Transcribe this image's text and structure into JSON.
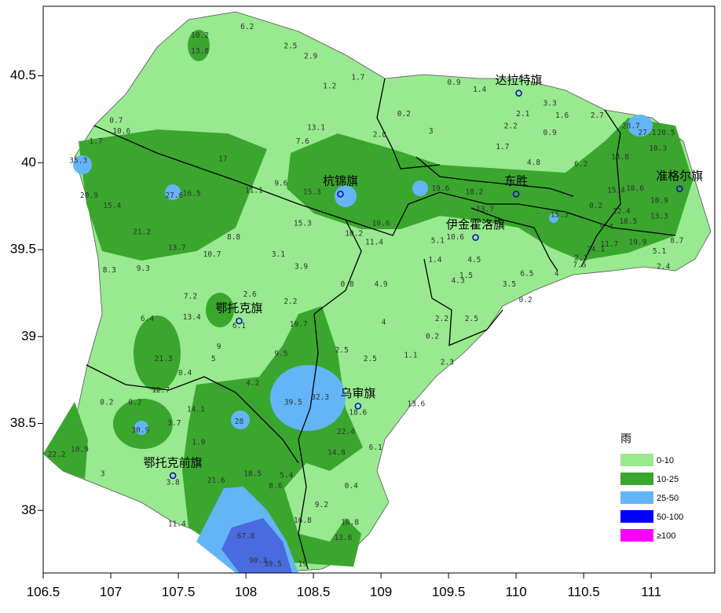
{
  "map": {
    "xlim": [
      106.5,
      111.47
    ],
    "ylim": [
      37.64,
      40.9
    ],
    "xticks": [
      106.5,
      107,
      107.5,
      108,
      108.5,
      109,
      109.5,
      110,
      110.5,
      111
    ],
    "yticks": [
      38,
      38.5,
      39,
      39.5,
      40,
      40.5
    ],
    "cities": [
      {
        "name": "达拉特旗",
        "lon": 110.02,
        "lat": 40.4
      },
      {
        "name": "东胜",
        "lon": 110.0,
        "lat": 39.82
      },
      {
        "name": "准格尔旗",
        "lon": 111.21,
        "lat": 39.85
      },
      {
        "name": "杭锦旗",
        "lon": 108.7,
        "lat": 39.82
      },
      {
        "name": "伊金霍洛旗",
        "lon": 109.7,
        "lat": 39.57
      },
      {
        "name": "鄂托克旗",
        "lon": 107.95,
        "lat": 39.09
      },
      {
        "name": "乌审旗",
        "lon": 108.83,
        "lat": 38.6
      },
      {
        "name": "鄂托克前旗",
        "lon": 107.46,
        "lat": 38.2
      }
    ],
    "legend": {
      "title": "雨",
      "entries": [
        {
          "label": "0-10",
          "color": "#98e98f"
        },
        {
          "label": "10-25",
          "color": "#3aa62e"
        },
        {
          "label": "25-50",
          "color": "#63b5f8"
        },
        {
          "label": "50-100",
          "color": "#0000ff"
        },
        {
          "label": "≥100",
          "color": "#ff00ff"
        }
      ]
    },
    "stations": [
      {
        "value": "6.2",
        "lon": 108.01,
        "lat": 40.78
      },
      {
        "value": "10.2",
        "lon": 107.66,
        "lat": 40.73
      },
      {
        "value": "13.8",
        "lon": 107.66,
        "lat": 40.64
      },
      {
        "value": "2.5",
        "lon": 108.33,
        "lat": 40.67
      },
      {
        "value": "2.9",
        "lon": 108.48,
        "lat": 40.61
      },
      {
        "value": "1.7",
        "lon": 108.83,
        "lat": 40.49
      },
      {
        "value": "1.2",
        "lon": 108.62,
        "lat": 40.44
      },
      {
        "value": "0.9",
        "lon": 109.54,
        "lat": 40.46
      },
      {
        "value": "1.4",
        "lon": 109.73,
        "lat": 40.42
      },
      {
        "value": "2.2",
        "lon": 109.96,
        "lat": 40.21
      },
      {
        "value": "3.3",
        "lon": 110.25,
        "lat": 40.34
      },
      {
        "value": "1.6",
        "lon": 110.34,
        "lat": 40.27
      },
      {
        "value": "2.7",
        "lon": 110.6,
        "lat": 40.27
      },
      {
        "value": "0.2",
        "lon": 109.17,
        "lat": 40.28
      },
      {
        "value": "3",
        "lon": 109.37,
        "lat": 40.18
      },
      {
        "value": "2.8",
        "lon": 108.99,
        "lat": 40.16
      },
      {
        "value": "7.6",
        "lon": 108.42,
        "lat": 40.12
      },
      {
        "value": "13.1",
        "lon": 108.52,
        "lat": 40.2
      },
      {
        "value": "17",
        "lon": 107.83,
        "lat": 40.02
      },
      {
        "value": "1.7",
        "lon": 106.89,
        "lat": 40.12
      },
      {
        "value": "0.7",
        "lon": 107.04,
        "lat": 40.24
      },
      {
        "value": "10.6",
        "lon": 107.08,
        "lat": 40.18
      },
      {
        "value": "35.3",
        "lon": 106.76,
        "lat": 40.01
      },
      {
        "value": "20.9",
        "lon": 106.84,
        "lat": 39.81
      },
      {
        "value": "27.6",
        "lon": 107.47,
        "lat": 39.81
      },
      {
        "value": "16.5",
        "lon": 107.6,
        "lat": 39.82
      },
      {
        "value": "15.4",
        "lon": 107.01,
        "lat": 39.75
      },
      {
        "value": "11.1",
        "lon": 108.06,
        "lat": 39.84
      },
      {
        "value": "9.6",
        "lon": 108.26,
        "lat": 39.88
      },
      {
        "value": "15.3",
        "lon": 108.49,
        "lat": 39.83
      },
      {
        "value": "21.2",
        "lon": 107.23,
        "lat": 39.6
      },
      {
        "value": "13.7",
        "lon": 107.49,
        "lat": 39.51
      },
      {
        "value": "10.7",
        "lon": 107.75,
        "lat": 39.47
      },
      {
        "value": "8.8",
        "lon": 107.91,
        "lat": 39.57
      },
      {
        "value": "9.3",
        "lon": 107.24,
        "lat": 39.39
      },
      {
        "value": "8.3",
        "lon": 106.99,
        "lat": 39.38
      },
      {
        "value": "3.1",
        "lon": 108.24,
        "lat": 39.47
      },
      {
        "value": "3.9",
        "lon": 108.41,
        "lat": 39.4
      },
      {
        "value": "15.3",
        "lon": 108.42,
        "lat": 39.65
      },
      {
        "value": "10.2",
        "lon": 108.8,
        "lat": 39.59
      },
      {
        "value": "11.4",
        "lon": 108.95,
        "lat": 39.54
      },
      {
        "value": "10.6",
        "lon": 109.0,
        "lat": 39.65
      },
      {
        "value": "0.8",
        "lon": 108.75,
        "lat": 39.3
      },
      {
        "value": "4.9",
        "lon": 109.0,
        "lat": 39.3
      },
      {
        "value": "7.2",
        "lon": 107.59,
        "lat": 39.23
      },
      {
        "value": "2.6",
        "lon": 108.03,
        "lat": 39.24
      },
      {
        "value": "2.2",
        "lon": 108.33,
        "lat": 39.2
      },
      {
        "value": "13.4",
        "lon": 107.6,
        "lat": 39.11
      },
      {
        "value": "6.1",
        "lon": 107.95,
        "lat": 39.06
      },
      {
        "value": "19.7",
        "lon": 108.39,
        "lat": 39.07
      },
      {
        "value": "6.4",
        "lon": 107.27,
        "lat": 39.1
      },
      {
        "value": "21.3",
        "lon": 107.39,
        "lat": 38.87
      },
      {
        "value": "9",
        "lon": 107.8,
        "lat": 38.94
      },
      {
        "value": "5",
        "lon": 107.76,
        "lat": 38.87
      },
      {
        "value": "0.4",
        "lon": 107.55,
        "lat": 38.79
      },
      {
        "value": "9.5",
        "lon": 108.26,
        "lat": 38.9
      },
      {
        "value": "4.2",
        "lon": 108.05,
        "lat": 38.73
      },
      {
        "value": "2.5",
        "lon": 108.71,
        "lat": 38.92
      },
      {
        "value": "2.5",
        "lon": 108.92,
        "lat": 38.87
      },
      {
        "value": "4",
        "lon": 109.02,
        "lat": 39.08
      },
      {
        "value": "1.1",
        "lon": 109.22,
        "lat": 38.89
      },
      {
        "value": "2.2",
        "lon": 109.45,
        "lat": 39.1
      },
      {
        "value": "0.2",
        "lon": 109.38,
        "lat": 39.0
      },
      {
        "value": "2.5",
        "lon": 109.67,
        "lat": 39.1
      },
      {
        "value": "2.3",
        "lon": 109.49,
        "lat": 38.85
      },
      {
        "value": "12.7",
        "lon": 107.37,
        "lat": 38.69
      },
      {
        "value": "0.2",
        "lon": 106.97,
        "lat": 38.62
      },
      {
        "value": "0.2",
        "lon": 107.18,
        "lat": 38.62
      },
      {
        "value": "14.1",
        "lon": 107.63,
        "lat": 38.58
      },
      {
        "value": "39.5",
        "lon": 108.35,
        "lat": 38.62
      },
      {
        "value": "32.3",
        "lon": 108.55,
        "lat": 38.65
      },
      {
        "value": "18.6",
        "lon": 108.83,
        "lat": 38.56
      },
      {
        "value": "13.6",
        "lon": 109.26,
        "lat": 38.61
      },
      {
        "value": "30.9",
        "lon": 107.22,
        "lat": 38.46
      },
      {
        "value": "3.7",
        "lon": 107.47,
        "lat": 38.5
      },
      {
        "value": "28",
        "lon": 107.95,
        "lat": 38.51
      },
      {
        "value": "1.9",
        "lon": 107.65,
        "lat": 38.39
      },
      {
        "value": "22.4",
        "lon": 108.74,
        "lat": 38.45
      },
      {
        "value": "10.9",
        "lon": 106.77,
        "lat": 38.35
      },
      {
        "value": "22.2",
        "lon": 106.6,
        "lat": 38.32
      },
      {
        "value": "6.1",
        "lon": 108.96,
        "lat": 38.36
      },
      {
        "value": "14.8",
        "lon": 108.67,
        "lat": 38.33
      },
      {
        "value": "3",
        "lon": 106.94,
        "lat": 38.21
      },
      {
        "value": "3.8",
        "lon": 107.46,
        "lat": 38.16
      },
      {
        "value": "21.6",
        "lon": 107.78,
        "lat": 38.17
      },
      {
        "value": "18.5",
        "lon": 108.05,
        "lat": 38.21
      },
      {
        "value": "5.4",
        "lon": 108.3,
        "lat": 38.2
      },
      {
        "value": "8.6",
        "lon": 108.22,
        "lat": 38.14
      },
      {
        "value": "0.4",
        "lon": 108.78,
        "lat": 38.14
      },
      {
        "value": "9.2",
        "lon": 108.56,
        "lat": 38.03
      },
      {
        "value": "16.8",
        "lon": 108.42,
        "lat": 37.94
      },
      {
        "value": "10.8",
        "lon": 108.77,
        "lat": 37.93
      },
      {
        "value": "13.6",
        "lon": 108.72,
        "lat": 37.84
      },
      {
        "value": "11.4",
        "lon": 107.49,
        "lat": 37.92
      },
      {
        "value": "67.8",
        "lon": 108.0,
        "lat": 37.85
      },
      {
        "value": "90.3",
        "lon": 108.09,
        "lat": 37.71
      },
      {
        "value": "39.5",
        "lon": 108.2,
        "lat": 37.69
      },
      {
        "value": "19",
        "lon": 108.42,
        "lat": 37.69
      },
      {
        "value": "10.3",
        "lon": 111.05,
        "lat": 40.08
      },
      {
        "value": "20.5",
        "lon": 111.11,
        "lat": 40.17
      },
      {
        "value": "28.7",
        "lon": 110.85,
        "lat": 40.21
      },
      {
        "value": "27.1",
        "lon": 110.97,
        "lat": 40.17
      },
      {
        "value": "14.8",
        "lon": 110.77,
        "lat": 40.03
      },
      {
        "value": "15.4",
        "lon": 110.74,
        "lat": 39.84
      },
      {
        "value": "0.2",
        "lon": 110.59,
        "lat": 39.75
      },
      {
        "value": "12.4",
        "lon": 110.78,
        "lat": 39.72
      },
      {
        "value": "18.5",
        "lon": 110.83,
        "lat": 39.66
      },
      {
        "value": "9.4",
        "lon": 110.67,
        "lat": 39.63
      },
      {
        "value": "11.7",
        "lon": 110.69,
        "lat": 39.53
      },
      {
        "value": "24.1",
        "lon": 110.59,
        "lat": 39.5
      },
      {
        "value": "19.9",
        "lon": 110.9,
        "lat": 39.54
      },
      {
        "value": "13.3",
        "lon": 111.06,
        "lat": 39.69
      },
      {
        "value": "10.6",
        "lon": 110.88,
        "lat": 39.85
      },
      {
        "value": "10.9",
        "lon": 111.06,
        "lat": 39.78
      },
      {
        "value": "8.7",
        "lon": 111.19,
        "lat": 39.55
      },
      {
        "value": "5.1",
        "lon": 111.06,
        "lat": 39.49
      },
      {
        "value": "2.4",
        "lon": 111.09,
        "lat": 39.4
      },
      {
        "value": "15.3",
        "lon": 110.32,
        "lat": 39.7
      },
      {
        "value": "6.2",
        "lon": 110.48,
        "lat": 39.99
      },
      {
        "value": "4.8",
        "lon": 110.13,
        "lat": 40.0
      },
      {
        "value": "2.1",
        "lon": 110.05,
        "lat": 40.28
      },
      {
        "value": "0.9",
        "lon": 110.25,
        "lat": 40.17
      },
      {
        "value": "1.7",
        "lon": 109.9,
        "lat": 40.09
      },
      {
        "value": "19.6",
        "lon": 109.44,
        "lat": 39.85
      },
      {
        "value": "18.2",
        "lon": 109.69,
        "lat": 39.83
      },
      {
        "value": "13.7",
        "lon": 109.77,
        "lat": 39.73
      },
      {
        "value": "10.6",
        "lon": 109.55,
        "lat": 39.57
      },
      {
        "value": "5.1",
        "lon": 109.42,
        "lat": 39.55
      },
      {
        "value": "4.5",
        "lon": 109.69,
        "lat": 39.44
      },
      {
        "value": "1.4",
        "lon": 109.4,
        "lat": 39.44
      },
      {
        "value": "4.3",
        "lon": 109.57,
        "lat": 39.32
      },
      {
        "value": "1.5",
        "lon": 109.63,
        "lat": 39.35
      },
      {
        "value": "3.5",
        "lon": 109.95,
        "lat": 39.3
      },
      {
        "value": "6.5",
        "lon": 110.08,
        "lat": 39.36
      },
      {
        "value": "0.2",
        "lon": 110.07,
        "lat": 39.21
      },
      {
        "value": "4",
        "lon": 110.3,
        "lat": 39.36
      },
      {
        "value": "2.1",
        "lon": 110.48,
        "lat": 39.45
      },
      {
        "value": "7.5",
        "lon": 110.47,
        "lat": 39.41
      }
    ]
  }
}
